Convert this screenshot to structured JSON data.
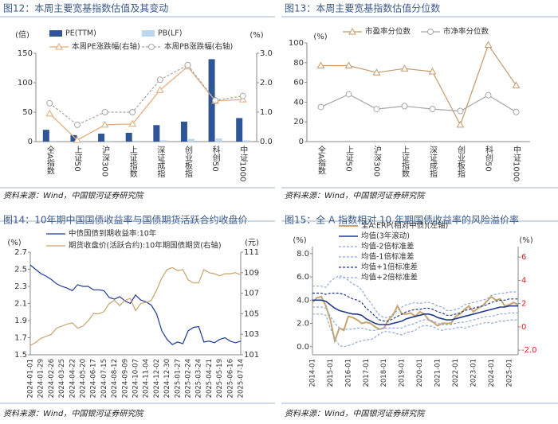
{
  "chart_data": [
    {
      "type": "bar",
      "title": "图12：本周主要宽基指数估值及其变动",
      "source": "资料来源：Wind，中国银河证券研究院",
      "y_label": "(倍)",
      "y2_label": "(%)",
      "categories": [
        "全A指数",
        "上证50",
        "沪深300",
        "上证指数",
        "深证成指",
        "创业板指",
        "科创50",
        "中证1000"
      ],
      "ylim": [
        0,
        150
      ],
      "yticks": [
        0,
        50,
        100,
        150
      ],
      "y2lim": [
        0,
        3
      ],
      "y2ticks": [
        {
          "value": 0,
          "label": "0.0"
        },
        {
          "value": 1,
          "label": "1.0"
        },
        {
          "value": 2,
          "label": "2.0"
        },
        {
          "value": 3,
          "label": "3.0"
        }
      ],
      "series": [
        {
          "name": "PE(TTM)",
          "type": "bar",
          "color": "#2f5597",
          "values": [
            20,
            11,
            13.5,
            15,
            28,
            34,
            140,
            40
          ]
        },
        {
          "name": "PB(LF)",
          "type": "bar",
          "color": "#bdd7ee",
          "values": [
            1.5,
            1.3,
            1.4,
            1.4,
            2.3,
            4.5,
            5.5,
            2.2
          ]
        },
        {
          "name": "本周PE涨跌幅(右轴)",
          "type": "line",
          "axis": "y2",
          "color": "#e2aa78",
          "marker": "triangle",
          "dash": false,
          "values": [
            0.95,
            0.05,
            0.57,
            0.6,
            1.75,
            2.55,
            1.38,
            1.43
          ]
        },
        {
          "name": "本周PB涨跌幅(右轴)",
          "type": "line",
          "axis": "y2",
          "color": "#a6a6a6",
          "marker": "circle",
          "dash": true,
          "values": [
            1.3,
            0.57,
            1.0,
            1.0,
            2.1,
            2.6,
            1.4,
            1.55
          ]
        }
      ]
    },
    {
      "type": "line",
      "title": "图13：本周主要宽基指数估值分位数",
      "source": "资料来源：Wind，中国银河证券研究院",
      "y_label": "(%)",
      "categories": [
        "全A指数",
        "上证50",
        "沪深300",
        "上证指数",
        "深证成指",
        "创业板指",
        "科创50",
        "中证1000"
      ],
      "ylim": [
        0,
        100
      ],
      "yticks": [
        0,
        20,
        40,
        60,
        80,
        100
      ],
      "series": [
        {
          "name": "市盈率分位数",
          "type": "line",
          "color": "#c49a6c",
          "marker": "triangle",
          "dash": false,
          "values": [
            77,
            77,
            70,
            74,
            71,
            17,
            98,
            57
          ]
        },
        {
          "name": "市净率分位数",
          "type": "line",
          "color": "#a6a6a6",
          "marker": "circle",
          "dash": false,
          "values": [
            35,
            48,
            33,
            36,
            33,
            31,
            47,
            30
          ]
        }
      ]
    },
    {
      "type": "line",
      "title": "图14：10年期中国国债收益率与国债期货活跃合约收盘价",
      "source": "资料来源：Wind，中国银河证券研究院",
      "y_label": "(%)",
      "y2_label": "(元)",
      "categories": [
        "2024-01-01",
        null,
        "2024-01-29",
        null,
        "2024-02-26",
        null,
        "2024-03-25",
        null,
        "2024-04-22",
        null,
        "2024-05-20",
        null,
        "2024-06-17",
        null,
        "2024-07-15",
        null,
        "2024-08-12",
        null,
        "2024-09-09",
        null,
        "2024-10-07",
        null,
        "2024-11-04",
        null,
        "2024-12-02",
        null,
        "2024-12-30",
        null,
        "2025-01-27",
        null,
        "2025-02-24",
        null,
        "2025-03-24",
        null,
        "2025-04-21",
        null,
        "2025-05-19",
        null,
        "2025-06-16",
        null,
        "2025-07-14"
      ],
      "ylim": [
        1.5,
        2.7
      ],
      "yticks": [
        1.5,
        1.7,
        1.9,
        2.1,
        2.3,
        2.5,
        2.7
      ],
      "y2lim": [
        101,
        111
      ],
      "y2ticks": [
        101,
        103,
        105,
        107,
        109,
        111
      ],
      "series": [
        {
          "name": "中债国债到期收益率:10年",
          "type": "line",
          "color": "#1f3a93",
          "values": [
            2.55,
            2.5,
            2.45,
            2.42,
            2.38,
            2.33,
            2.3,
            2.28,
            2.25,
            2.32,
            2.3,
            2.3,
            2.26,
            2.26,
            2.25,
            2.17,
            2.15,
            2.18,
            2.13,
            2.1,
            2.2,
            2.14,
            2.12,
            2.08,
            1.98,
            1.78,
            1.68,
            1.62,
            1.65,
            1.63,
            1.78,
            1.82,
            1.83,
            1.65,
            1.66,
            1.64,
            1.68,
            1.7,
            1.66,
            1.64,
            1.66
          ]
        },
        {
          "name": "期货收盘价(活跃合约):10年期国债期货(右轴)",
          "type": "line",
          "axis": "y2",
          "color": "#c8a46e",
          "values": [
            101.9,
            102.2,
            102.6,
            102.8,
            103.0,
            103.6,
            103.8,
            104.0,
            104.1,
            103.6,
            103.8,
            104.3,
            105.0,
            105.0,
            105.2,
            106.0,
            106.3,
            105.8,
            106.3,
            106.5,
            105.3,
            106.0,
            106.1,
            106.3,
            107.3,
            108.5,
            109.3,
            109.5,
            109.2,
            109.3,
            108.3,
            108.0,
            108.0,
            109.3,
            109.0,
            108.9,
            108.7,
            108.9,
            108.9,
            109.0,
            108.8
          ]
        }
      ]
    },
    {
      "type": "line",
      "title": "图15：全 A 指数相对 10 年期国债收益率的风险溢价率",
      "source": "资料来源：Wind，中国银河证券研究院",
      "y_label": "(%)",
      "y2_label": "(%)",
      "categories": [
        "2014-01",
        null,
        null,
        null,
        "2015-01",
        null,
        null,
        null,
        "2016-01",
        null,
        null,
        null,
        "2017-01",
        null,
        null,
        null,
        "2018-01",
        null,
        null,
        null,
        "2019-01",
        null,
        null,
        null,
        "2020-01",
        null,
        null,
        null,
        "2021-01",
        null,
        null,
        null,
        "2022-01",
        null,
        null,
        null,
        "2023-01",
        null,
        null,
        null,
        "2024-01",
        null,
        null,
        null,
        "2025-01",
        null,
        null
      ],
      "ylim": [
        -0.7,
        8.6
      ],
      "yticks": [
        {
          "value": 0,
          "label": "0.0"
        },
        {
          "value": 2,
          "label": "2.0"
        },
        {
          "value": 4,
          "label": "4.0"
        },
        {
          "value": 6,
          "label": "6.0"
        },
        {
          "value": 8,
          "label": "8.0"
        }
      ],
      "y2lim": [
        -2.4,
        6.9
      ],
      "y2ticks": [
        {
          "value": -2,
          "label": "-2.0"
        },
        0,
        2,
        4,
        6
      ],
      "y2color": "#e02020",
      "series": [
        {
          "name": "全A:ERP(相对中债)(左轴)",
          "type": "line",
          "color": "#c8a46e",
          "width": 2,
          "values": [
            3.8,
            4.2,
            4.3,
            3.5,
            2.3,
            0.5,
            1.6,
            1.4,
            2.6,
            2.5,
            2.3,
            2.0,
            2.1,
            2.0,
            1.7,
            1.5,
            1.6,
            2.3,
            2.7,
            3.5,
            2.8,
            2.8,
            2.9,
            2.6,
            3.0,
            2.8,
            2.3,
            2.1,
            1.8,
            2.0,
            2.0,
            2.0,
            2.6,
            2.8,
            3.2,
            3.5,
            3.0,
            3.3,
            3.5,
            3.9,
            4.3,
            4.0,
            4.1,
            3.5,
            3.6,
            3.8,
            3.6
          ]
        },
        {
          "name": "均值(3年滚动)",
          "type": "line",
          "color": "#1f3a8a",
          "width": 1.6,
          "values": [
            4.0,
            4.0,
            4.0,
            3.9,
            3.6,
            3.3,
            3.1,
            3.0,
            2.9,
            2.8,
            2.8,
            2.7,
            2.4,
            2.2,
            2.0,
            1.9,
            1.9,
            1.9,
            2.0,
            2.1,
            2.2,
            2.4,
            2.5,
            2.6,
            2.7,
            2.8,
            2.8,
            2.7,
            2.5,
            2.4,
            2.3,
            2.3,
            2.4,
            2.5,
            2.6,
            2.7,
            2.8,
            2.9,
            3.0,
            3.1,
            3.2,
            3.3,
            3.4,
            3.4,
            3.5,
            3.5,
            3.5
          ]
        },
        {
          "name": "均值-2倍标准差",
          "type": "line",
          "color": "#8eaadb",
          "dash": true,
          "values": [
            2.8,
            2.8,
            2.8,
            2.7,
            1.6,
            0.7,
            0.1,
            0.0,
            0.1,
            0.2,
            0.4,
            0.5,
            0.6,
            0.6,
            0.8,
            1.1,
            1.3,
            1.3,
            1.2,
            1.1,
            1.0,
            1.2,
            1.3,
            1.4,
            1.7,
            1.8,
            1.8,
            1.7,
            1.5,
            1.4,
            1.5,
            1.5,
            1.6,
            1.7,
            1.6,
            1.7,
            1.8,
            1.9,
            2.0,
            2.1,
            2.0,
            2.1,
            2.2,
            2.2,
            2.3,
            2.3,
            2.3
          ]
        },
        {
          "name": "均值-1倍标准差",
          "type": "line",
          "color": "#8eaadb",
          "dash": true,
          "values": [
            3.4,
            3.4,
            3.4,
            3.3,
            2.6,
            2.0,
            1.6,
            1.5,
            1.5,
            1.5,
            1.6,
            1.6,
            1.5,
            1.4,
            1.4,
            1.5,
            1.6,
            1.6,
            1.6,
            1.6,
            1.6,
            1.8,
            1.9,
            2.0,
            2.2,
            2.3,
            2.3,
            2.2,
            2.0,
            1.9,
            1.9,
            1.9,
            2.0,
            2.1,
            2.1,
            2.2,
            2.3,
            2.4,
            2.5,
            2.6,
            2.6,
            2.7,
            2.8,
            2.8,
            2.9,
            2.9,
            2.9
          ]
        },
        {
          "name": "均值+1倍标准差",
          "type": "line",
          "color": "#1f3a8a",
          "dash": true,
          "values": [
            4.6,
            4.6,
            4.6,
            4.5,
            4.6,
            4.6,
            4.6,
            4.5,
            4.3,
            4.1,
            4.0,
            3.8,
            3.3,
            3.0,
            2.6,
            2.3,
            2.2,
            2.2,
            2.4,
            2.6,
            2.8,
            3.0,
            3.1,
            3.2,
            3.2,
            3.3,
            3.3,
            3.2,
            3.0,
            2.9,
            2.7,
            2.7,
            2.8,
            2.9,
            3.1,
            3.2,
            3.3,
            3.4,
            3.5,
            3.6,
            3.8,
            3.9,
            4.0,
            4.0,
            4.1,
            4.1,
            4.1
          ]
        },
        {
          "name": "均值+2倍标准差",
          "type": "line",
          "color": "#8eaadb",
          "dash": true,
          "values": [
            5.2,
            5.2,
            5.2,
            5.1,
            5.6,
            5.9,
            6.1,
            6.0,
            5.7,
            5.4,
            5.2,
            4.9,
            4.2,
            3.8,
            3.2,
            2.7,
            2.5,
            2.5,
            2.8,
            3.1,
            3.4,
            3.6,
            3.7,
            3.8,
            3.7,
            3.8,
            3.8,
            3.7,
            3.5,
            3.4,
            3.1,
            3.1,
            3.2,
            3.3,
            3.6,
            3.7,
            3.8,
            3.9,
            4.0,
            4.1,
            4.4,
            4.5,
            4.6,
            4.6,
            4.7,
            4.7,
            4.7
          ]
        }
      ]
    }
  ]
}
